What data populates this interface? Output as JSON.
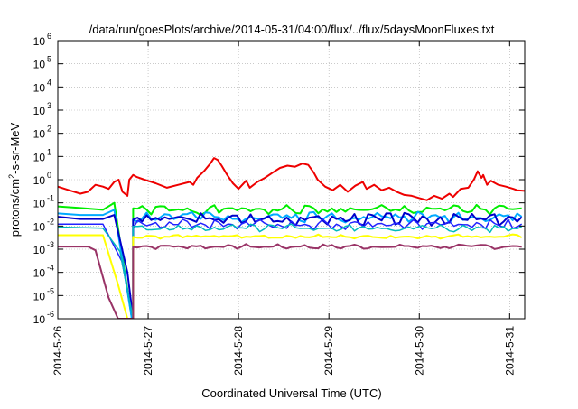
{
  "chart_data": {
    "type": "line",
    "title": "/data/run/goesPlots/archive/2014-05-31/04:00/flux/../flux/5daysMoonFluxes.txt",
    "xlabel": "Coordinated Universal Time (UTC)",
    "ylabel": {
      "main": "protons/cm",
      "sup": "2",
      "rest": "-s-sr-MeV"
    },
    "y_scale": "log",
    "ylim": [
      1e-06,
      1000000.0
    ],
    "xlim": [
      "2014-05-26T00:00",
      "2014-05-31T04:00"
    ],
    "grid": true,
    "legend": "none",
    "x_ticks": [
      {
        "date": "2014-05-26",
        "label": "2014-5-26"
      },
      {
        "date": "2014-05-27",
        "label": "2014-5-27"
      },
      {
        "date": "2014-05-28",
        "label": "2014-5-28"
      },
      {
        "date": "2014-05-29",
        "label": "2014-5-29"
      },
      {
        "date": "2014-05-30",
        "label": "2014-5-30"
      },
      {
        "date": "2014-05-31",
        "label": "2014-5-31"
      }
    ],
    "y_ticks": [
      {
        "exp": -6,
        "label": "10",
        "sup": "-6"
      },
      {
        "exp": -5,
        "label": "10",
        "sup": "-5"
      },
      {
        "exp": -4,
        "label": "10",
        "sup": "-4"
      },
      {
        "exp": -3,
        "label": "10",
        "sup": "-3"
      },
      {
        "exp": -2,
        "label": "10",
        "sup": "-2"
      },
      {
        "exp": -1,
        "label": "10",
        "sup": "-1"
      },
      {
        "exp": 0,
        "label": "10",
        "sup": "0"
      },
      {
        "exp": 1,
        "label": "10",
        "sup": "1"
      },
      {
        "exp": 2,
        "label": "10",
        "sup": "2"
      },
      {
        "exp": 3,
        "label": "10",
        "sup": "3"
      },
      {
        "exp": 4,
        "label": "10",
        "sup": "4"
      },
      {
        "exp": 5,
        "label": "10",
        "sup": "5"
      },
      {
        "exp": 6,
        "label": "10",
        "sup": "6"
      }
    ],
    "series": [
      {
        "color": "#ee0000",
        "width": 2,
        "points": [
          [
            "2014-05-26T00:00",
            0.5
          ],
          [
            "2014-05-26T03:00",
            0.35
          ],
          [
            "2014-05-26T06:00",
            0.25
          ],
          [
            "2014-05-26T08:00",
            0.3
          ],
          [
            "2014-05-26T10:00",
            0.6
          ],
          [
            "2014-05-26T12:00",
            0.5
          ],
          [
            "2014-05-26T13:30",
            0.4
          ],
          [
            "2014-05-26T15:00",
            0.8
          ],
          [
            "2014-05-26T16:10",
            1.0
          ],
          [
            "2014-05-26T17:10",
            0.3
          ],
          [
            "2014-05-26T18:30",
            0.2
          ],
          [
            "2014-05-26T19:00",
            1.0
          ],
          [
            "2014-05-26T20:00",
            1.6
          ],
          [
            "2014-05-26T21:00",
            1.3
          ],
          [
            "2014-05-26T23:00",
            1.0
          ],
          [
            "2014-05-27T02:00",
            0.7
          ],
          [
            "2014-05-27T05:00",
            0.45
          ],
          [
            "2014-05-27T08:00",
            0.6
          ],
          [
            "2014-05-27T11:00",
            0.8
          ],
          [
            "2014-05-27T12:00",
            0.6
          ],
          [
            "2014-05-27T13:00",
            1.2
          ],
          [
            "2014-05-27T15:00",
            2.5
          ],
          [
            "2014-05-27T16:30",
            5.0
          ],
          [
            "2014-05-27T17:30",
            8.5
          ],
          [
            "2014-05-27T18:30",
            7.0
          ],
          [
            "2014-05-27T19:30",
            4.0
          ],
          [
            "2014-05-27T21:00",
            1.6
          ],
          [
            "2014-05-27T22:30",
            0.7
          ],
          [
            "2014-05-28T00:00",
            0.4
          ],
          [
            "2014-05-28T02:00",
            0.9
          ],
          [
            "2014-05-28T03:00",
            0.45
          ],
          [
            "2014-05-28T05:00",
            0.8
          ],
          [
            "2014-05-28T07:00",
            1.2
          ],
          [
            "2014-05-28T09:00",
            2.0
          ],
          [
            "2014-05-28T11:00",
            3.2
          ],
          [
            "2014-05-28T13:00",
            4.0
          ],
          [
            "2014-05-28T15:00",
            3.6
          ],
          [
            "2014-05-28T17:00",
            5.0
          ],
          [
            "2014-05-28T18:30",
            4.3
          ],
          [
            "2014-05-28T20:00",
            2.0
          ],
          [
            "2014-05-28T21:00",
            1.0
          ],
          [
            "2014-05-28T23:00",
            0.5
          ],
          [
            "2014-05-29T01:00",
            0.35
          ],
          [
            "2014-05-29T03:00",
            0.6
          ],
          [
            "2014-05-29T05:00",
            0.3
          ],
          [
            "2014-05-29T07:00",
            0.55
          ],
          [
            "2014-05-29T09:00",
            0.8
          ],
          [
            "2014-05-29T10:00",
            0.4
          ],
          [
            "2014-05-29T12:00",
            0.6
          ],
          [
            "2014-05-29T14:00",
            0.35
          ],
          [
            "2014-05-29T16:00",
            0.45
          ],
          [
            "2014-05-29T18:00",
            0.3
          ],
          [
            "2014-05-29T20:00",
            0.22
          ],
          [
            "2014-05-29T22:00",
            0.2
          ],
          [
            "2014-05-30T00:00",
            0.16
          ],
          [
            "2014-05-30T02:00",
            0.13
          ],
          [
            "2014-05-30T04:00",
            0.2
          ],
          [
            "2014-05-30T06:00",
            0.15
          ],
          [
            "2014-05-30T08:00",
            0.25
          ],
          [
            "2014-05-30T09:00",
            0.18
          ],
          [
            "2014-05-30T11:00",
            0.4
          ],
          [
            "2014-05-30T13:00",
            0.45
          ],
          [
            "2014-05-30T14:30",
            1.0
          ],
          [
            "2014-05-30T15:30",
            2.3
          ],
          [
            "2014-05-30T16:30",
            1.2
          ],
          [
            "2014-05-30T17:00",
            1.6
          ],
          [
            "2014-05-30T18:00",
            0.6
          ],
          [
            "2014-05-30T19:00",
            0.9
          ],
          [
            "2014-05-30T21:00",
            0.6
          ],
          [
            "2014-05-30T23:00",
            0.5
          ],
          [
            "2014-05-31T01:00",
            0.4
          ],
          [
            "2014-05-31T02:00",
            0.35
          ],
          [
            "2014-05-31T04:00",
            0.33
          ]
        ]
      },
      {
        "color": "#00ee00",
        "width": 2,
        "base": 0.05,
        "amp": 0.25,
        "period": 0.27,
        "seed": 1,
        "pre_event": [
          [
            "2014-05-26T00:00",
            0.07
          ],
          [
            "2014-05-26T06:00",
            0.06
          ],
          [
            "2014-05-26T12:00",
            0.05
          ],
          [
            "2014-05-26T15:00",
            0.1
          ]
        ],
        "drop": [
          [
            "2014-05-26T15:00",
            0.1
          ],
          [
            "2014-05-26T19:40",
            1e-06
          ]
        ],
        "resume": "2014-05-26T20:00"
      },
      {
        "color": "#00aaff",
        "width": 2,
        "base": 0.025,
        "amp": 0.28,
        "period": 0.23,
        "seed": 2,
        "pre_event": [
          [
            "2014-05-26T00:00",
            0.035
          ],
          [
            "2014-05-26T06:00",
            0.03
          ],
          [
            "2014-05-26T12:00",
            0.03
          ],
          [
            "2014-05-26T15:00",
            0.05
          ]
        ],
        "drop": [
          [
            "2014-05-26T15:00",
            0.05
          ],
          [
            "2014-05-26T19:40",
            1e-06
          ]
        ],
        "resume": "2014-05-26T20:00"
      },
      {
        "color": "#0000cc",
        "width": 2,
        "base": 0.02,
        "amp": 0.3,
        "period": 0.19,
        "seed": 3,
        "pre_event": [
          [
            "2014-05-26T00:00",
            0.025
          ],
          [
            "2014-05-26T06:00",
            0.02
          ],
          [
            "2014-05-26T12:00",
            0.02
          ],
          [
            "2014-05-26T15:00",
            0.03
          ]
        ],
        "drop": [
          [
            "2014-05-26T15:00",
            0.03
          ],
          [
            "2014-05-26T18:30",
            0.0001
          ]
        ],
        "resume": "2014-05-26T20:00"
      },
      {
        "color": "#2222ff",
        "width": 1.5,
        "base": 0.012,
        "amp": 0.25,
        "period": 0.17,
        "seed": 4,
        "pre_event": [
          [
            "2014-05-26T00:00",
            0.012
          ],
          [
            "2014-05-26T12:00",
            0.012
          ]
        ],
        "drop": [
          [
            "2014-05-26T12:00",
            0.012
          ],
          [
            "2014-05-26T17:00",
            0.0003
          ]
        ],
        "resume": "2014-05-26T20:00"
      },
      {
        "color": "#00bbbb",
        "width": 1.5,
        "base": 0.008,
        "amp": 0.2,
        "period": 0.21,
        "seed": 5,
        "pre_event": [
          [
            "2014-05-26T00:00",
            0.009
          ],
          [
            "2014-05-26T12:00",
            0.008
          ]
        ],
        "drop": [
          [
            "2014-05-26T12:00",
            0.008
          ],
          [
            "2014-05-26T16:30",
            0.0008
          ]
        ],
        "resume": "2014-05-26T20:00"
      },
      {
        "color": "#ffff00",
        "width": 2,
        "base": 0.0035,
        "amp": 0.1,
        "period": 0.31,
        "seed": 6,
        "pre_event": [
          [
            "2014-05-26T00:00",
            0.004
          ],
          [
            "2014-05-26T12:00",
            0.004
          ]
        ],
        "drop": [
          [
            "2014-05-26T12:00",
            0.004
          ],
          [
            "2014-05-26T16:00",
            3e-05
          ],
          [
            "2014-05-26T18:30",
            1e-06
          ]
        ],
        "resume": "2014-05-26T20:00"
      },
      {
        "color": "#993366",
        "width": 2,
        "base": 0.0013,
        "amp": 0.12,
        "period": 0.29,
        "seed": 7,
        "pre_event": [
          [
            "2014-05-26T00:00",
            0.0013
          ],
          [
            "2014-05-26T08:00",
            0.0013
          ],
          [
            "2014-05-26T10:00",
            0.0009
          ]
        ],
        "drop": [
          [
            "2014-05-26T10:00",
            0.0009
          ],
          [
            "2014-05-26T13:30",
            8e-06
          ],
          [
            "2014-05-26T16:00",
            1e-06
          ]
        ],
        "resume": "2014-05-26T20:00"
      }
    ]
  }
}
